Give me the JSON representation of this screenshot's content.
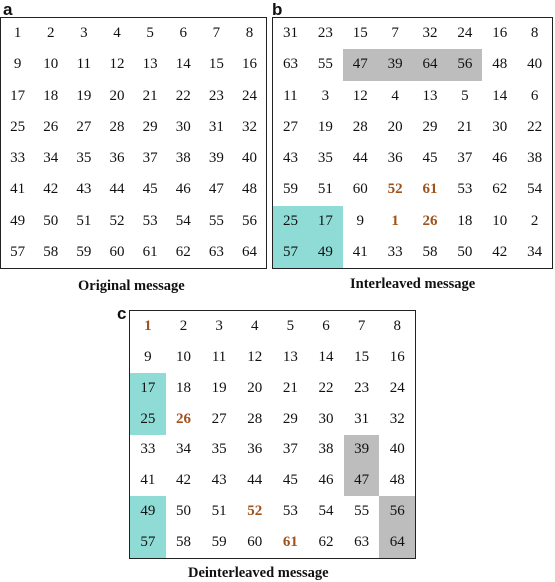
{
  "panels": [
    {
      "letter": "a",
      "caption": "Original message",
      "rows": [
        [
          1,
          2,
          3,
          4,
          5,
          6,
          7,
          8
        ],
        [
          9,
          10,
          11,
          12,
          13,
          14,
          15,
          16
        ],
        [
          17,
          18,
          19,
          20,
          21,
          22,
          23,
          24
        ],
        [
          25,
          26,
          27,
          28,
          29,
          30,
          31,
          32
        ],
        [
          33,
          34,
          35,
          36,
          37,
          38,
          39,
          40
        ],
        [
          41,
          42,
          43,
          44,
          45,
          46,
          47,
          48
        ],
        [
          49,
          50,
          51,
          52,
          53,
          54,
          55,
          56
        ],
        [
          57,
          58,
          59,
          60,
          61,
          62,
          63,
          64
        ]
      ],
      "highlighted": [],
      "shades": []
    },
    {
      "letter": "b",
      "caption": "Interleaved message",
      "rows": [
        [
          31,
          23,
          15,
          7,
          32,
          24,
          16,
          8
        ],
        [
          63,
          55,
          47,
          39,
          64,
          56,
          48,
          40
        ],
        [
          11,
          3,
          12,
          4,
          13,
          5,
          14,
          6
        ],
        [
          27,
          19,
          28,
          20,
          29,
          21,
          30,
          22
        ],
        [
          43,
          35,
          44,
          36,
          45,
          37,
          46,
          38
        ],
        [
          59,
          51,
          60,
          52,
          61,
          53,
          62,
          54
        ],
        [
          25,
          17,
          9,
          1,
          26,
          18,
          10,
          2
        ],
        [
          57,
          49,
          41,
          33,
          58,
          50,
          42,
          34
        ]
      ],
      "highlighted": [
        52,
        61,
        1,
        26
      ],
      "shades": [
        {
          "color": "gray",
          "r0": 1,
          "c0": 2,
          "r1": 1,
          "c1": 5
        },
        {
          "color": "cyan",
          "r0": 6,
          "c0": 0,
          "r1": 7,
          "c1": 1
        }
      ]
    },
    {
      "letter": "c",
      "caption": "Deinterleaved message",
      "rows": [
        [
          1,
          2,
          3,
          4,
          5,
          6,
          7,
          8
        ],
        [
          9,
          10,
          11,
          12,
          13,
          14,
          15,
          16
        ],
        [
          17,
          18,
          19,
          20,
          21,
          22,
          23,
          24
        ],
        [
          25,
          26,
          27,
          28,
          29,
          30,
          31,
          32
        ],
        [
          33,
          34,
          35,
          36,
          37,
          38,
          39,
          40
        ],
        [
          41,
          42,
          43,
          44,
          45,
          46,
          47,
          48
        ],
        [
          49,
          50,
          51,
          52,
          53,
          54,
          55,
          56
        ],
        [
          57,
          58,
          59,
          60,
          61,
          62,
          63,
          64
        ]
      ],
      "highlighted": [
        1,
        26,
        52,
        61
      ],
      "shades": [
        {
          "color": "cyan",
          "r0": 2,
          "c0": 0,
          "r1": 3,
          "c1": 0
        },
        {
          "color": "cyan",
          "r0": 6,
          "c0": 0,
          "r1": 7,
          "c1": 0
        },
        {
          "color": "gray",
          "r0": 4,
          "c0": 6,
          "r1": 5,
          "c1": 6
        },
        {
          "color": "gray",
          "r0": 6,
          "c0": 7,
          "r1": 7,
          "c1": 7
        }
      ]
    }
  ]
}
